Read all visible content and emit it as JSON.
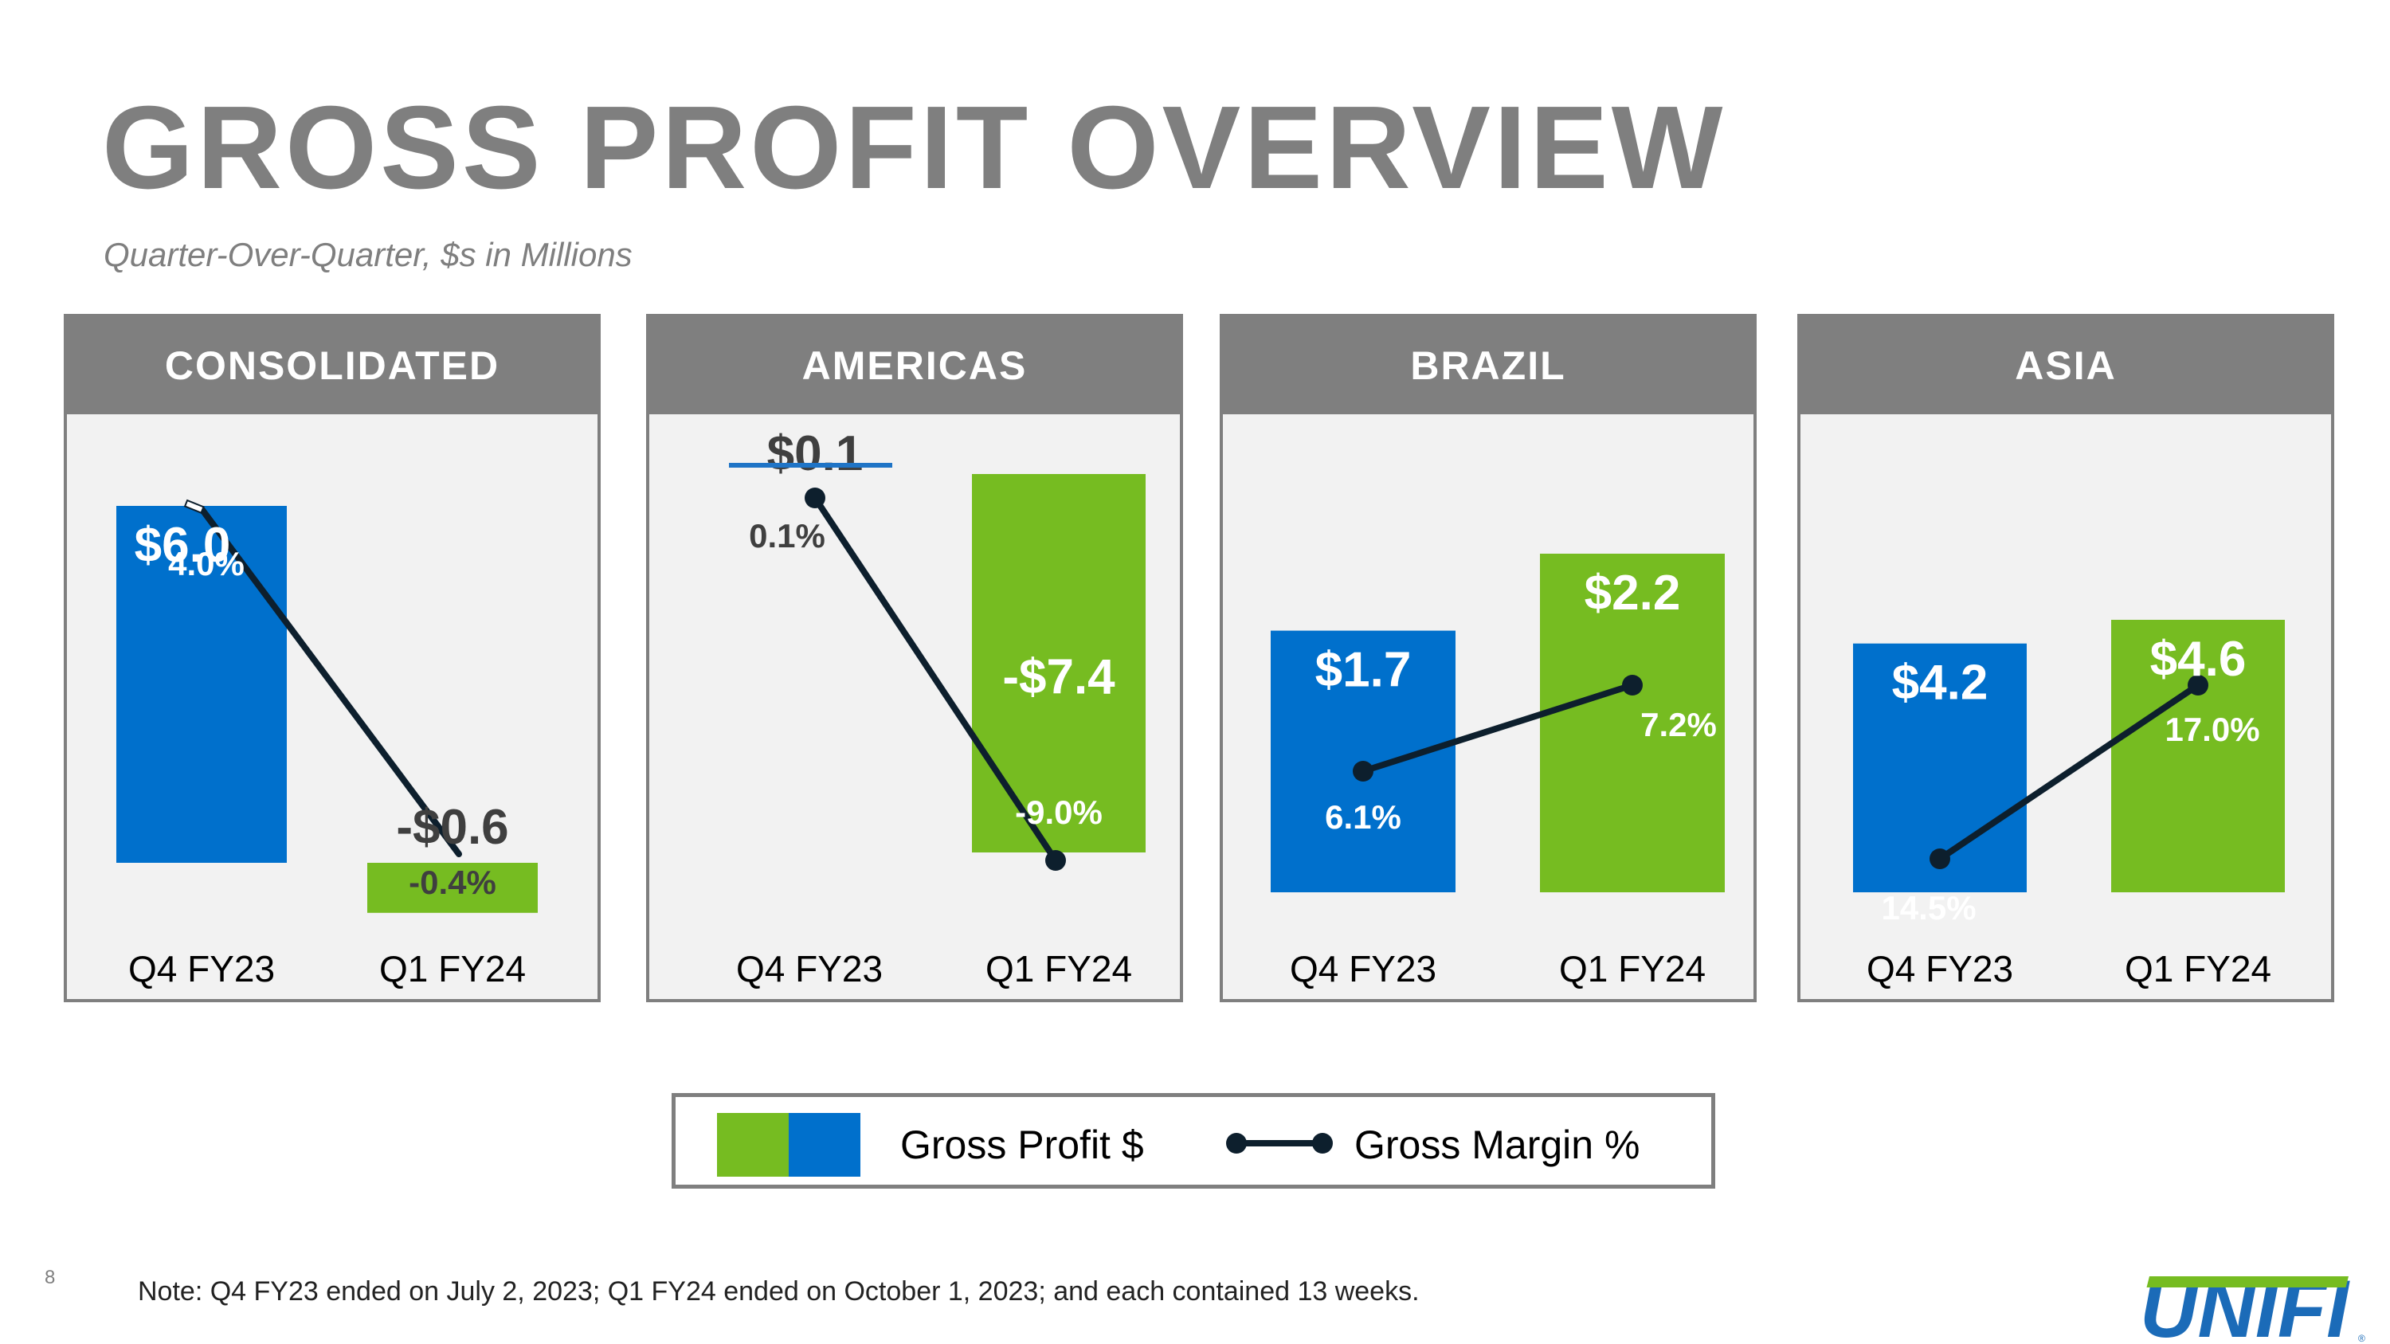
{
  "title": "GROSS PROFIT OVERVIEW",
  "subtitle": "Quarter-Over-Quarter, $s in Millions",
  "colors": {
    "q4_bar": "#0070cc",
    "q1_bar": "#76bc21",
    "line": "#0d1f2d",
    "panel_header": "#7f7f7f",
    "value_dark": "#3f3f3f"
  },
  "chart_data": [
    {
      "type": "bar",
      "title": "CONSOLIDATED",
      "categories": [
        "Q4 FY23",
        "Q1 FY24"
      ],
      "series": [
        {
          "name": "Gross Profit $",
          "values": [
            6.0,
            -0.6
          ],
          "labels": [
            "$6.0",
            "-$0.6"
          ]
        },
        {
          "name": "Gross Margin %",
          "values": [
            4.0,
            -0.4
          ],
          "labels": [
            "4.0%",
            "-0.4%"
          ]
        }
      ]
    },
    {
      "type": "bar",
      "title": "AMERICAS",
      "categories": [
        "Q4 FY23",
        "Q1 FY24"
      ],
      "series": [
        {
          "name": "Gross Profit $",
          "values": [
            0.1,
            -7.4
          ],
          "labels": [
            "$0.1",
            "-$7.4"
          ]
        },
        {
          "name": "Gross Margin %",
          "values": [
            0.1,
            -9.0
          ],
          "labels": [
            "0.1%",
            "-9.0%"
          ]
        }
      ]
    },
    {
      "type": "bar",
      "title": "BRAZIL",
      "categories": [
        "Q4 FY23",
        "Q1 FY24"
      ],
      "series": [
        {
          "name": "Gross Profit $",
          "values": [
            1.7,
            2.2
          ],
          "labels": [
            "$1.7",
            "$2.2"
          ]
        },
        {
          "name": "Gross Margin %",
          "values": [
            6.1,
            7.2
          ],
          "labels": [
            "6.1%",
            "7.2%"
          ]
        }
      ]
    },
    {
      "type": "bar",
      "title": "ASIA",
      "categories": [
        "Q4 FY23",
        "Q1 FY24"
      ],
      "series": [
        {
          "name": "Gross Profit $",
          "values": [
            4.2,
            4.6
          ],
          "labels": [
            "$4.2",
            "$4.6"
          ]
        },
        {
          "name": "Gross Margin %",
          "values": [
            14.5,
            17.0
          ],
          "labels": [
            "14.5%",
            "17.0%"
          ]
        }
      ]
    }
  ],
  "legend": {
    "gross_profit": "Gross Profit $",
    "gross_margin": "Gross Margin %"
  },
  "page_number": "8",
  "note": "Note: Q4 FY23 ended on July 2, 2023; Q1 FY24 ended on October 1, 2023; and each contained 13 weeks.",
  "logo_text": "UNIFI"
}
